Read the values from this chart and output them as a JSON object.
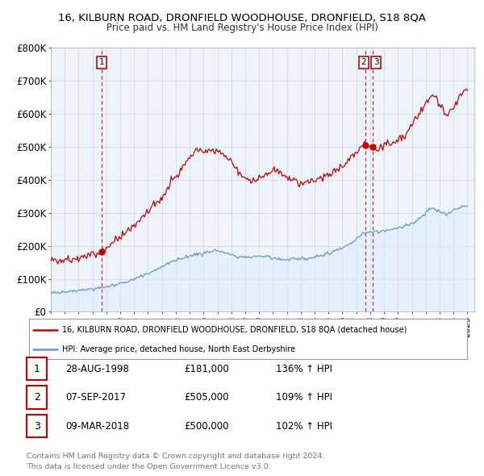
{
  "title_line1": "16, KILBURN ROAD, DRONFIELD WOODHOUSE, DRONFIELD, S18 8QA",
  "title_line2": "Price paid vs. HM Land Registry's House Price Index (HPI)",
  "ylim": [
    0,
    800000
  ],
  "yticks": [
    0,
    100000,
    200000,
    300000,
    400000,
    500000,
    600000,
    700000,
    800000
  ],
  "ytick_labels": [
    "£0",
    "£100K",
    "£200K",
    "£300K",
    "£400K",
    "£500K",
    "£600K",
    "£700K",
    "£800K"
  ],
  "sale_color": "#cc0000",
  "hpi_color": "#6699cc",
  "hpi_fill_color": "#ddeeff",
  "annotation_line_color": "#cc0000",
  "sale_date_floats": [
    1998.667,
    2017.667,
    2018.167
  ],
  "sale_prices": [
    181000,
    505000,
    500000
  ],
  "sale_labels": [
    "1",
    "2",
    "3"
  ],
  "legend_sale_label": "16, KILBURN ROAD, DRONFIELD WOODHOUSE, DRONFIELD, S18 8QA (detached house)",
  "legend_hpi_label": "HPI: Average price, detached house, North East Derbyshire",
  "table_rows": [
    [
      "1",
      "28-AUG-1998",
      "£181,000",
      "136% ↑ HPI"
    ],
    [
      "2",
      "07-SEP-2017",
      "£505,000",
      "109% ↑ HPI"
    ],
    [
      "3",
      "09-MAR-2018",
      "£500,000",
      "102% ↑ HPI"
    ]
  ],
  "footer_line1": "Contains HM Land Registry data © Crown copyright and database right 2024.",
  "footer_line2": "This data is licensed under the Open Government Licence v3.0.",
  "background_color": "#ffffff",
  "grid_color": "#cccccc",
  "chart_bg": "#eef4fb"
}
